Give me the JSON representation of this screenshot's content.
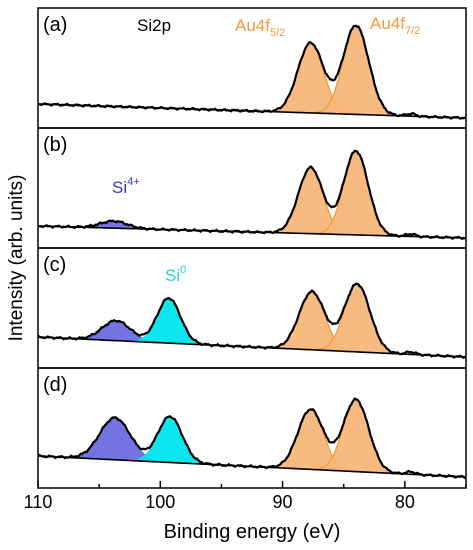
{
  "figure": {
    "ylabel": "Intensity (arb. units)",
    "xlabel": "Binding energy (eV)",
    "xticks": [
      110,
      100,
      90,
      80
    ],
    "colors": {
      "au": "#f7b77a",
      "au_line": "#f39a3c",
      "si4": "#6b6be0",
      "si0": "#00e5ee",
      "curve": "#000000",
      "label_si4": "#3535d9",
      "label_si0": "#1fd6dc",
      "label_au": "#f39a3c"
    }
  },
  "chart_data": {
    "type": "line",
    "stacked_panels": true,
    "xlim": [
      110,
      75
    ],
    "xlabel": "Binding energy (eV)",
    "ylabel": "Intensity (arb. units)",
    "x_ticks": [
      110,
      100,
      90,
      80
    ],
    "grid": false,
    "panels": [
      {
        "label": "(a)",
        "annotations": [
          {
            "text": "Si2p",
            "color": "#000000"
          },
          {
            "text": "Au4f",
            "sub": "5/2",
            "color": "#f39a3c"
          },
          {
            "text": "Au4f",
            "sub": "7/2",
            "color": "#f39a3c"
          }
        ],
        "baseline": {
          "start": 0.16,
          "end": 0.02
        },
        "peaks": [
          {
            "component": "Au4f5/2",
            "center": 87.7,
            "height": 0.7,
            "width": 1.05,
            "color": "au"
          },
          {
            "component": "Au4f7/2",
            "center": 84.0,
            "height": 0.89,
            "width": 1.05,
            "color": "au"
          }
        ]
      },
      {
        "label": "(b)",
        "annotations": [
          {
            "text": "Si",
            "sup": "4+",
            "color": "#3535d9"
          }
        ],
        "baseline": {
          "start": 0.14,
          "end": 0.02
        },
        "peaks": [
          {
            "component": "Si4+",
            "center": 103.8,
            "height": 0.07,
            "width": 1.1,
            "color": "si4"
          },
          {
            "component": "Au4f5/2",
            "center": 87.7,
            "height": 0.66,
            "width": 1.0,
            "color": "au"
          },
          {
            "component": "Au4f7/2",
            "center": 84.0,
            "height": 0.84,
            "width": 1.0,
            "color": "au"
          }
        ]
      },
      {
        "label": "(c)",
        "annotations": [
          {
            "text": "Si",
            "sup": "0",
            "color": "#1fd6dc"
          }
        ],
        "baseline": {
          "start": 0.23,
          "end": 0.03
        },
        "peaks": [
          {
            "component": "Si4+",
            "center": 103.6,
            "height": 0.2,
            "width": 1.15,
            "color": "si4"
          },
          {
            "component": "Si0",
            "center": 99.3,
            "height": 0.45,
            "width": 0.95,
            "color": "si0"
          },
          {
            "component": "Au4f5/2",
            "center": 87.6,
            "height": 0.58,
            "width": 1.05,
            "color": "au"
          },
          {
            "component": "Au4f7/2",
            "center": 83.9,
            "height": 0.68,
            "width": 1.05,
            "color": "au"
          }
        ]
      },
      {
        "label": "(d)",
        "annotations": [],
        "baseline": {
          "start": 0.24,
          "end": 0.03
        },
        "peaks": [
          {
            "component": "Si4+",
            "center": 103.7,
            "height": 0.42,
            "width": 1.25,
            "color": "si4"
          },
          {
            "component": "Si0",
            "center": 99.2,
            "height": 0.46,
            "width": 1.0,
            "color": "si0"
          },
          {
            "component": "Au4f5/2",
            "center": 87.7,
            "height": 0.6,
            "width": 1.05,
            "color": "au"
          },
          {
            "component": "Au4f7/2",
            "center": 84.0,
            "height": 0.72,
            "width": 1.05,
            "color": "au"
          }
        ]
      }
    ]
  }
}
